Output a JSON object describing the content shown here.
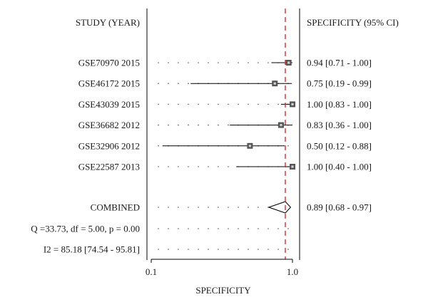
{
  "chart_data": {
    "type": "forest",
    "left_header": "STUDY (YEAR)",
    "right_header": "SPECIFICITY (95% CI)",
    "xlabel": "SPECIFICITY",
    "x_scale": "log",
    "xlim": [
      0.1,
      1.0
    ],
    "x_ticks": [
      {
        "value": 0.1,
        "label": "0.1"
      },
      {
        "value": 1.0,
        "label": "1.0"
      }
    ],
    "reference_line": {
      "value": 0.89,
      "style": "dashed",
      "color": "#cc2222"
    },
    "studies": [
      {
        "label": "GSE70970 2015",
        "estimate": 0.94,
        "lower": 0.71,
        "upper": 1.0,
        "ci_text": "0.94 [0.71 - 1.00]"
      },
      {
        "label": "GSE46172 2015",
        "estimate": 0.75,
        "lower": 0.19,
        "upper": 0.99,
        "ci_text": "0.75 [0.19 - 0.99]"
      },
      {
        "label": "GSE43039 2015",
        "estimate": 1.0,
        "lower": 0.83,
        "upper": 1.0,
        "ci_text": "1.00 [0.83 - 1.00]"
      },
      {
        "label": "GSE36682 2012",
        "estimate": 0.83,
        "lower": 0.36,
        "upper": 1.0,
        "ci_text": "0.83 [0.36 - 1.00]"
      },
      {
        "label": "GSE32906 2012",
        "estimate": 0.5,
        "lower": 0.12,
        "upper": 0.88,
        "ci_text": "0.50 [0.12 - 0.88]"
      },
      {
        "label": "GSE22587 2013",
        "estimate": 1.0,
        "lower": 0.4,
        "upper": 1.0,
        "ci_text": "1.00 [0.40 - 1.00]"
      }
    ],
    "combined": {
      "label": "COMBINED",
      "estimate": 0.89,
      "lower": 0.68,
      "upper": 0.97,
      "ci_text": "0.89 [0.68 - 0.97]"
    },
    "stats": [
      "Q =33.73, df = 5.00, p = 0.00",
      "I2 = 85.18 [74.54 - 95.81]"
    ],
    "colors": {
      "text": "#1a1a1a",
      "marker": "#555555",
      "reference": "#cc2222",
      "axis": "#000000"
    }
  }
}
